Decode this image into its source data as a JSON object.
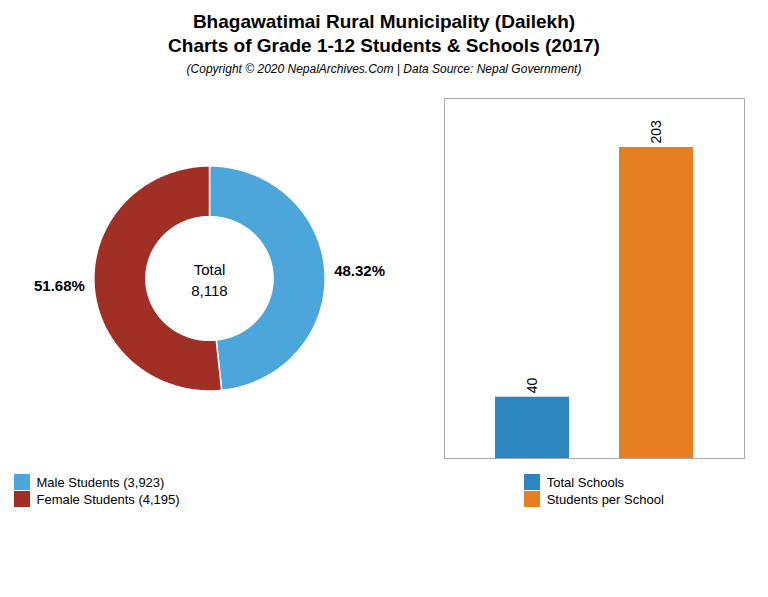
{
  "chart_data": [
    {
      "type": "pie",
      "title": "Bhagawatimai Rural Municipality (Dailekh)\nCharts of Grade 1-12 Students & Schools (2017)",
      "subtitle": "(Copyright © 2020 NepalArchives.Com | Data Source: Nepal Government)",
      "categories": [
        "Male Students (3,923)",
        "Female Students (4,195)"
      ],
      "values": [
        48.32,
        51.68
      ],
      "value_labels": [
        "48.32%",
        "51.68%"
      ],
      "colors": [
        "#4da6d9",
        "#a03025"
      ],
      "data_labels": true,
      "annotations": [
        "Total",
        "8,118"
      ],
      "legend": "lower left"
    },
    {
      "type": "bar",
      "categories": [
        "Total Schools",
        "Students per School"
      ],
      "values": [
        40,
        203
      ],
      "colors": [
        "#2e86c1",
        "#e67e22"
      ],
      "ylim": [
        0,
        235
      ],
      "yticks": [],
      "tick_labels": false,
      "data_labels": true,
      "grid": false,
      "legend": "lower center"
    }
  ]
}
